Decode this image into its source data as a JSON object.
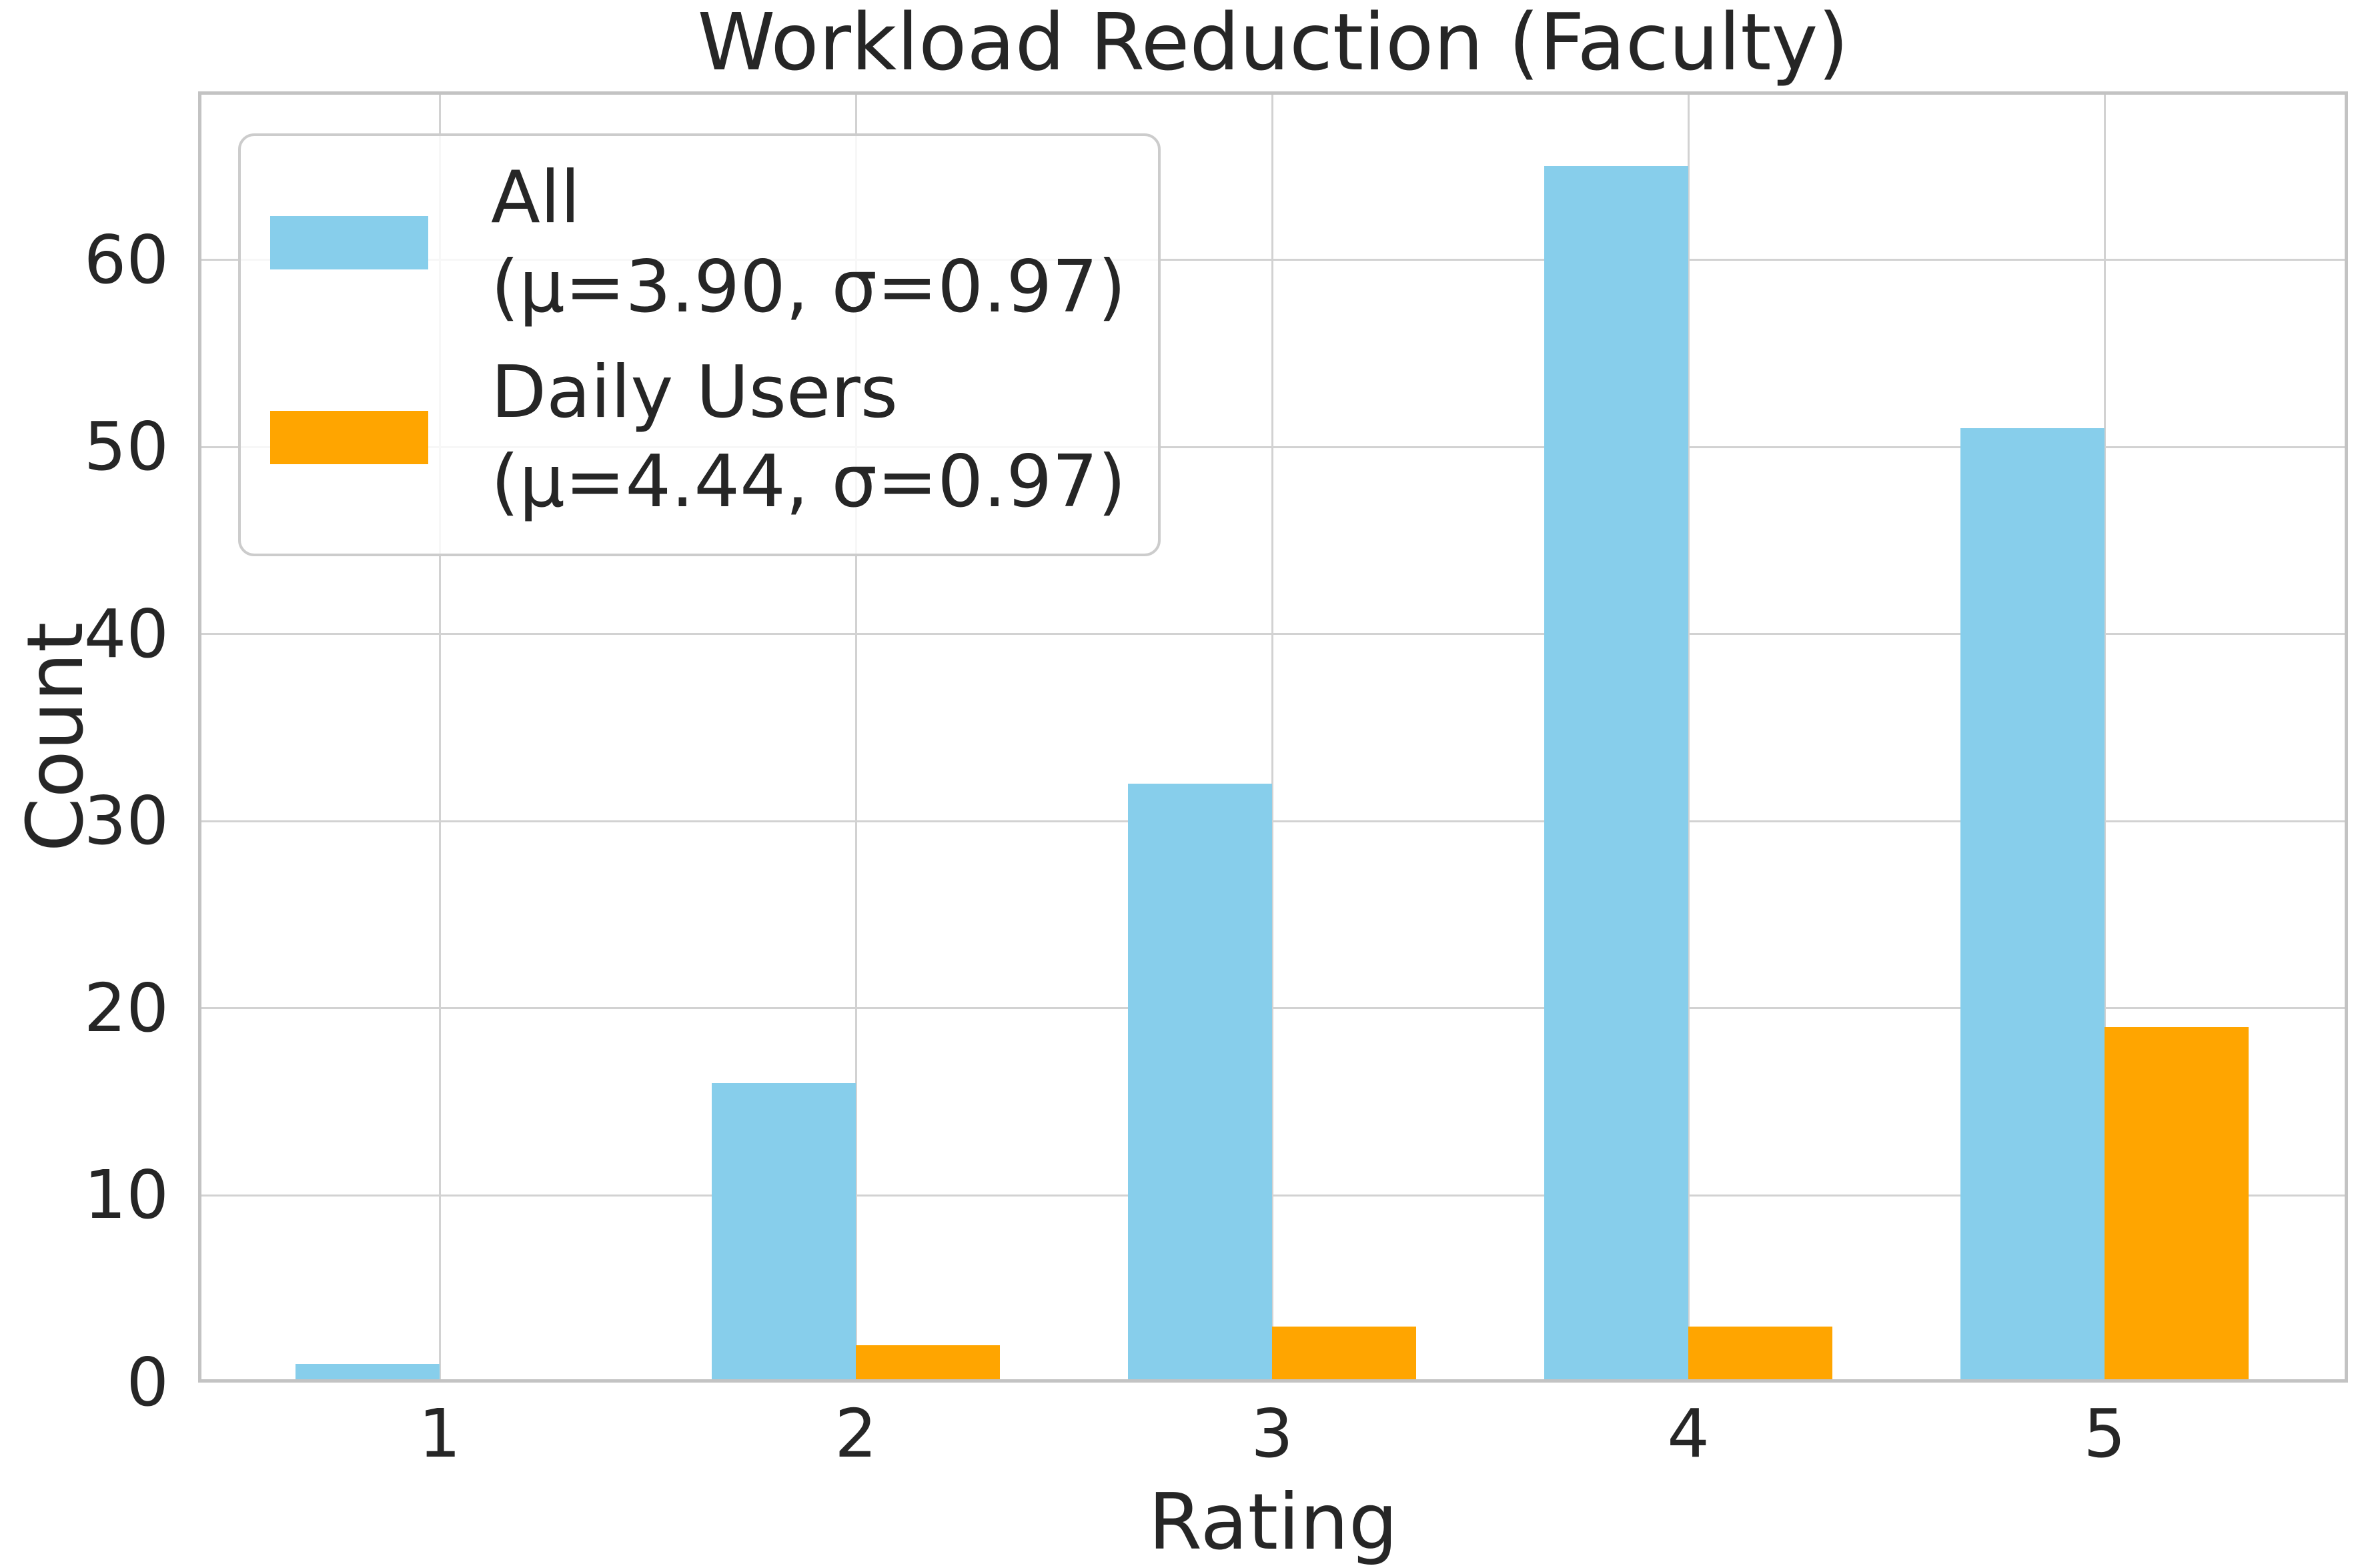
{
  "chart_data": {
    "type": "bar",
    "title": "Workload Reduction (Faculty)",
    "xlabel": "Rating",
    "ylabel": "Count",
    "categories": [
      "1",
      "2",
      "3",
      "4",
      "5"
    ],
    "series": [
      {
        "name": "All",
        "stats": "(μ=3.90, σ=0.97)",
        "mu": 3.9,
        "sigma": 0.97,
        "color": "#87CEEB",
        "values": [
          1,
          16,
          32,
          65,
          51
        ]
      },
      {
        "name": "Daily Users",
        "stats": "(μ=4.44, σ=0.97)",
        "mu": 4.44,
        "sigma": 0.97,
        "color": "#FFA500",
        "values": [
          0,
          2,
          3,
          3,
          19
        ]
      }
    ],
    "yticks": [
      0,
      10,
      20,
      30,
      40,
      50,
      60
    ],
    "ylim": [
      0,
      69
    ],
    "grid": true,
    "legend_position": "upper left",
    "bar_width_fraction": 0.35
  },
  "colors": {
    "text": "#262626",
    "grid": "#d2d2d2",
    "spine": "#c3c3c3",
    "background": "#ffffff"
  }
}
